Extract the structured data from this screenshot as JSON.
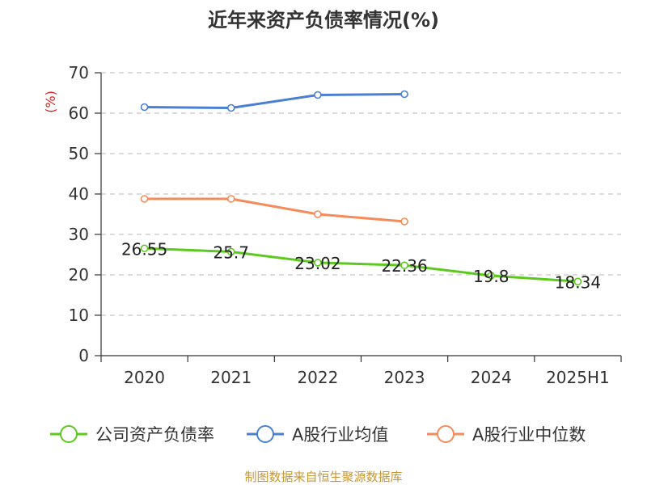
{
  "chart_data": {
    "type": "line",
    "title": "近年来资产负债率情况(%)",
    "ylabel": "(%)",
    "ylim": [
      0,
      70
    ],
    "yticks": [
      0,
      10,
      20,
      30,
      40,
      50,
      60,
      70
    ],
    "grid": true,
    "legend_position": "bottom",
    "categories": [
      "2020",
      "2021",
      "2022",
      "2023",
      "2024",
      "2025H1"
    ],
    "series": [
      {
        "name": "公司资产负债率",
        "color": "#5cc91e",
        "values": [
          26.55,
          25.7,
          23.02,
          22.36,
          19.8,
          18.34
        ],
        "show_labels": true
      },
      {
        "name": "A股行业均值",
        "color": "#4a7fd4",
        "values": [
          61.5,
          61.3,
          64.5,
          64.7,
          null,
          null
        ],
        "show_labels": false
      },
      {
        "name": "A股行业中位数",
        "color": "#f58b5a",
        "values": [
          38.8,
          38.8,
          35.0,
          33.2,
          null,
          null
        ],
        "show_labels": false
      }
    ],
    "source": "制图数据来自恒生聚源数据库",
    "ylabel_color": "#e02020",
    "source_color": "#c89632"
  }
}
